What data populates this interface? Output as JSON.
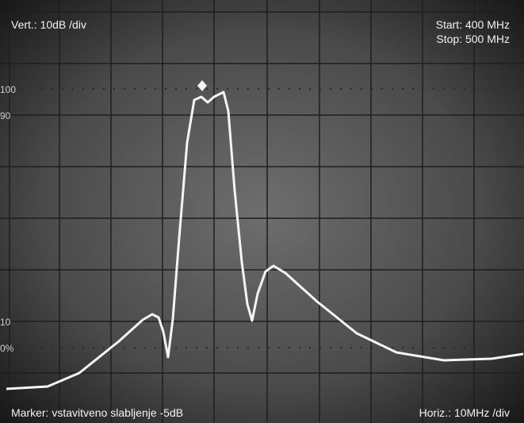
{
  "screen": {
    "vertical_scale": "Vert.: 10dB /div",
    "start": "Start: 400 MHz",
    "stop": "Stop: 500 MHz",
    "marker": "Marker: vstavitveno slabljenje -5dB",
    "horizontal_scale": "Horiz.: 10MHz /div",
    "graticule_labels": [
      "100",
      "90",
      "10",
      "0%"
    ]
  }
}
